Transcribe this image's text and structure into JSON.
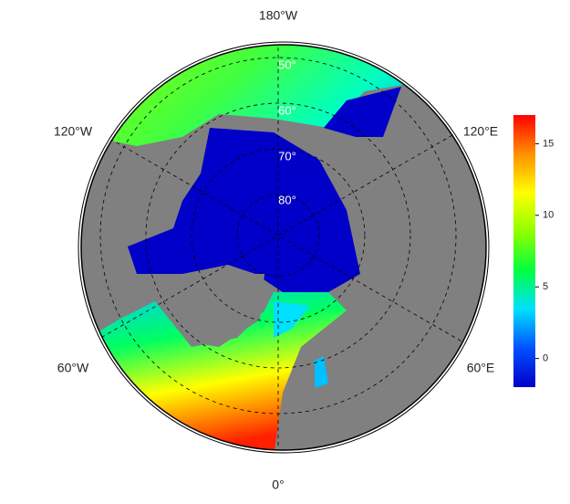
{
  "map": {
    "longitude_labels": [
      "180°W",
      "120°W",
      "120°E",
      "60°W",
      "60°E",
      "0°"
    ],
    "latitude_labels": [
      "50°",
      "60°",
      "70°",
      "80°"
    ]
  },
  "colorbar": {
    "lim": [
      -2,
      17
    ],
    "ticks": [
      0,
      5,
      10,
      15
    ],
    "colors": [
      "#0000c8",
      "#0050ff",
      "#00e0ff",
      "#00ff40",
      "#90ff00",
      "#ffff00",
      "#ff9000",
      "#ff0000"
    ]
  }
}
